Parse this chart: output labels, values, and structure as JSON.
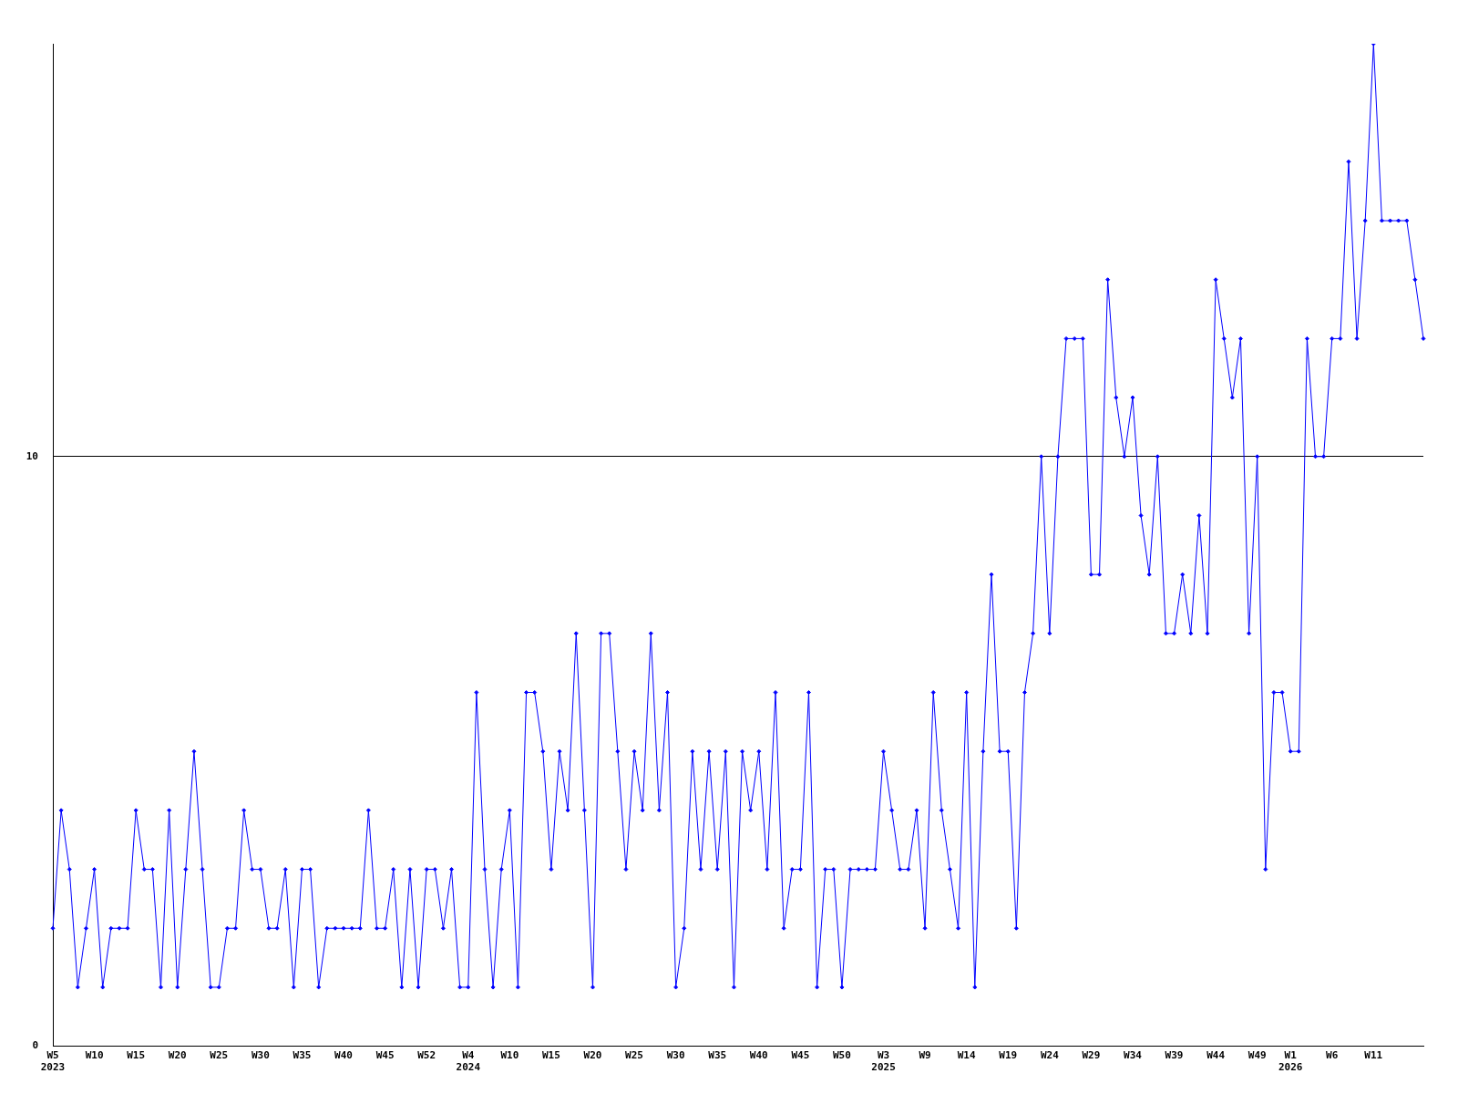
{
  "chart_data": {
    "type": "line",
    "categories": [
      "W5 2023",
      null,
      null,
      null,
      null,
      "W10",
      null,
      null,
      null,
      null,
      "W15",
      null,
      null,
      null,
      null,
      "W20",
      null,
      null,
      null,
      null,
      "W25",
      null,
      null,
      null,
      null,
      "W30",
      null,
      null,
      null,
      null,
      "W35",
      null,
      null,
      null,
      null,
      "W40",
      null,
      null,
      null,
      null,
      "W45",
      null,
      null,
      null,
      null,
      "W52",
      null,
      null,
      null,
      null,
      "W4 2024",
      null,
      null,
      null,
      null,
      "W10",
      null,
      null,
      null,
      null,
      "W15",
      null,
      null,
      null,
      null,
      "W20",
      null,
      null,
      null,
      null,
      "W25",
      null,
      null,
      null,
      null,
      "W30",
      null,
      null,
      null,
      null,
      "W35",
      null,
      null,
      null,
      null,
      "W40",
      null,
      null,
      null,
      null,
      "W45",
      null,
      null,
      null,
      null,
      "W50",
      null,
      null,
      null,
      null,
      "W3 2025",
      null,
      null,
      null,
      null,
      "W9",
      null,
      null,
      null,
      null,
      "W14",
      null,
      null,
      null,
      null,
      "W19",
      null,
      null,
      null,
      null,
      "W24",
      null,
      null,
      null,
      null,
      "W29",
      null,
      null,
      null,
      null,
      "W34",
      null,
      null,
      null,
      null,
      "W39",
      null,
      null,
      null,
      null,
      "W44",
      null,
      null,
      null,
      null,
      "W49",
      null,
      null,
      null,
      "W1 2026",
      null,
      null,
      null,
      null,
      "W6",
      null,
      null,
      null,
      null,
      "W11",
      null,
      null,
      null,
      null,
      null,
      null
    ],
    "series": [
      {
        "color": "#0000ff",
        "values": [
          2,
          4,
          3,
          1,
          2,
          3,
          1,
          2,
          2,
          2,
          4,
          3,
          3,
          1,
          4,
          1,
          3,
          5,
          3,
          1,
          1,
          2,
          2,
          4,
          3,
          3,
          2,
          2,
          3,
          1,
          3,
          3,
          1,
          2,
          2,
          2,
          2,
          2,
          4,
          2,
          2,
          3,
          1,
          3,
          1,
          3,
          3,
          2,
          3,
          1,
          1,
          6,
          3,
          1,
          3,
          4,
          1,
          6,
          6,
          5,
          3,
          5,
          4,
          7,
          4,
          1,
          7,
          7,
          5,
          3,
          5,
          4,
          7,
          4,
          6,
          1,
          2,
          5,
          3,
          5,
          3,
          5,
          1,
          5,
          4,
          5,
          3,
          6,
          2,
          3,
          3,
          6,
          1,
          3,
          3,
          1,
          3,
          3,
          3,
          3,
          5,
          4,
          3,
          3,
          4,
          2,
          6,
          4,
          3,
          2,
          6,
          1,
          5,
          8,
          5,
          5,
          2,
          6,
          7,
          10,
          7,
          10,
          12,
          12,
          12,
          8,
          8,
          13,
          11,
          10,
          11,
          9,
          8,
          10,
          7,
          7,
          8,
          7,
          9,
          7,
          13,
          12,
          11,
          12,
          7,
          10,
          3,
          6,
          6,
          5,
          5,
          12,
          10,
          10,
          12,
          12,
          15,
          12,
          14,
          17,
          14,
          14,
          14,
          14,
          13,
          12
        ]
      }
    ],
    "ylim": [
      0,
      17
    ],
    "yticks": [
      0,
      10
    ],
    "grid": "y",
    "marker": "diamond",
    "legend": false
  }
}
